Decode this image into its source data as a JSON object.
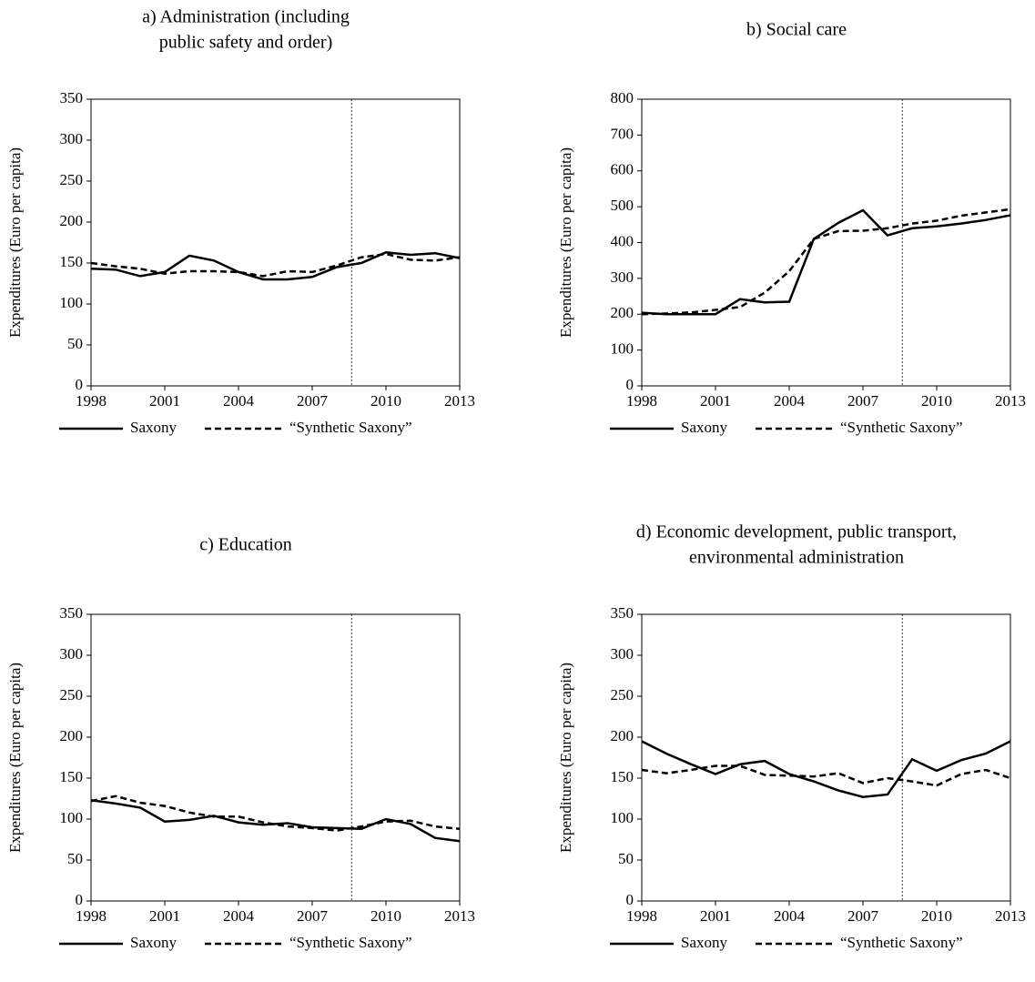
{
  "chart_data": [
    {
      "type": "line",
      "title": [
        "a) Administration (including",
        "public safety and order)"
      ],
      "y_label": "Expenditures (Euro per capita)",
      "x": [
        1998,
        1999,
        2000,
        2001,
        2002,
        2003,
        2004,
        2005,
        2006,
        2007,
        2008,
        2009,
        2010,
        2011,
        2012,
        2013
      ],
      "xlim": [
        1998,
        2013
      ],
      "xticks": [
        1998,
        2001,
        2004,
        2007,
        2010,
        2013
      ],
      "ylim": [
        0,
        350
      ],
      "yticks": [
        0,
        50,
        100,
        150,
        200,
        250,
        300,
        350
      ],
      "vline": 2008.6,
      "series": [
        {
          "name": "Saxony",
          "color": "#000000",
          "style": "solid",
          "values": [
            143,
            142,
            134,
            139,
            159,
            153,
            139,
            130,
            130,
            133,
            145,
            150,
            163,
            160,
            162,
            156
          ]
        },
        {
          "name": "“Synthetic Saxony”",
          "color": "#000000",
          "style": "dashed",
          "values": [
            150,
            146,
            143,
            137,
            140,
            140,
            139,
            134,
            140,
            139,
            147,
            157,
            161,
            154,
            153,
            157
          ]
        }
      ]
    },
    {
      "type": "line",
      "title": [
        "b) Social care"
      ],
      "y_label": "Expenditures (Euro per capita)",
      "x": [
        1998,
        1999,
        2000,
        2001,
        2002,
        2003,
        2004,
        2005,
        2006,
        2007,
        2008,
        2009,
        2010,
        2011,
        2012,
        2013
      ],
      "xlim": [
        1998,
        2013
      ],
      "xticks": [
        1998,
        2001,
        2004,
        2007,
        2010,
        2013
      ],
      "ylim": [
        0,
        800
      ],
      "yticks": [
        0,
        100,
        200,
        300,
        400,
        500,
        600,
        700,
        800
      ],
      "vline": 2008.6,
      "series": [
        {
          "name": "Saxony",
          "color": "#000000",
          "style": "solid",
          "values": [
            204,
            200,
            200,
            200,
            242,
            233,
            235,
            410,
            455,
            490,
            420,
            440,
            445,
            453,
            463,
            476
          ]
        },
        {
          "name": "“Synthetic Saxony”",
          "color": "#000000",
          "style": "dashed",
          "values": [
            200,
            202,
            205,
            212,
            220,
            260,
            320,
            410,
            432,
            433,
            440,
            453,
            461,
            475,
            484,
            493
          ]
        }
      ]
    },
    {
      "type": "line",
      "title": [
        "c) Education"
      ],
      "y_label": "Expenditures (Euro per capita)",
      "x": [
        1998,
        1999,
        2000,
        2001,
        2002,
        2003,
        2004,
        2005,
        2006,
        2007,
        2008,
        2009,
        2010,
        2011,
        2012,
        2013
      ],
      "xlim": [
        1998,
        2013
      ],
      "xticks": [
        1998,
        2001,
        2004,
        2007,
        2010,
        2013
      ],
      "ylim": [
        0,
        350
      ],
      "yticks": [
        0,
        50,
        100,
        150,
        200,
        250,
        300,
        350
      ],
      "vline": 2008.6,
      "series": [
        {
          "name": "Saxony",
          "color": "#000000",
          "style": "solid",
          "values": [
            123,
            119,
            114,
            97,
            99,
            104,
            96,
            93,
            95,
            90,
            89,
            88,
            100,
            94,
            77,
            73
          ]
        },
        {
          "name": "“Synthetic Saxony”",
          "color": "#000000",
          "style": "dashed",
          "values": [
            122,
            128,
            120,
            116,
            108,
            103,
            103,
            96,
            91,
            89,
            86,
            91,
            97,
            98,
            91,
            88
          ]
        }
      ]
    },
    {
      "type": "line",
      "title": [
        "d) Economic development, public transport,",
        "environmental administration"
      ],
      "y_label": "Expenditures (Euro per capita)",
      "x": [
        1998,
        1999,
        2000,
        2001,
        2002,
        2003,
        2004,
        2005,
        2006,
        2007,
        2008,
        2009,
        2010,
        2011,
        2012,
        2013
      ],
      "xlim": [
        1998,
        2013
      ],
      "xticks": [
        1998,
        2001,
        2004,
        2007,
        2010,
        2013
      ],
      "ylim": [
        0,
        350
      ],
      "yticks": [
        0,
        50,
        100,
        150,
        200,
        250,
        300,
        350
      ],
      "vline": 2008.6,
      "series": [
        {
          "name": "Saxony",
          "color": "#000000",
          "style": "solid",
          "values": [
            195,
            180,
            167,
            155,
            167,
            171,
            155,
            146,
            135,
            127,
            130,
            173,
            159,
            172,
            180,
            195
          ]
        },
        {
          "name": "“Synthetic Saxony”",
          "color": "#000000",
          "style": "dashed",
          "values": [
            160,
            156,
            160,
            165,
            165,
            154,
            153,
            152,
            156,
            144,
            150,
            146,
            141,
            155,
            160,
            150
          ]
        }
      ]
    }
  ]
}
